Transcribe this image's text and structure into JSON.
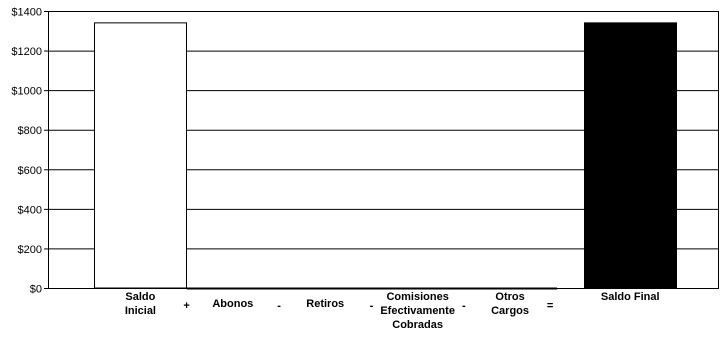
{
  "chart_data": {
    "type": "bar",
    "categories": [
      "Saldo Inicial",
      "Abonos",
      "Retiros",
      "Comisiones Efectivamente Cobradas",
      "Otros Cargos",
      "Saldo Final"
    ],
    "category_lines": [
      [
        "Saldo",
        "Inicial"
      ],
      [
        "Abonos"
      ],
      [
        "Retiros"
      ],
      [
        "Comisiones",
        "Efectivamente",
        "Cobradas"
      ],
      [
        "Otros",
        "Cargos"
      ],
      [
        "Saldo Final"
      ]
    ],
    "operators": [
      "+",
      "-",
      "-",
      "-",
      "="
    ],
    "values": [
      1340,
      0,
      0,
      0,
      0,
      1340
    ],
    "bar_colors": [
      "#ffffff",
      "#ffffff",
      "#ffffff",
      "#ffffff",
      "#ffffff",
      "#000000"
    ],
    "ylim": [
      0,
      1400
    ],
    "y_ticks": [
      "$0",
      "$200",
      "$400",
      "$600",
      "$800",
      "$1000",
      "$1200",
      "$1400"
    ],
    "y_tick_values": [
      0,
      200,
      400,
      600,
      800,
      1000,
      1200,
      1400
    ],
    "grid": true,
    "title": "",
    "xlabel": "",
    "ylabel": ""
  }
}
